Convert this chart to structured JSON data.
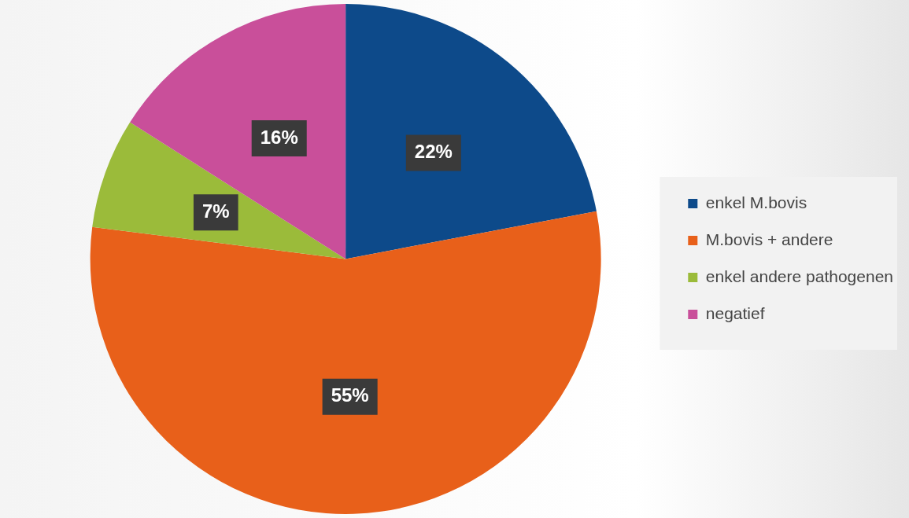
{
  "chart_data": {
    "type": "pie",
    "categories": [
      "enkel M.bovis",
      "M.bovis + andere",
      "enkel andere pathogenen",
      "negatief"
    ],
    "values": [
      22,
      55,
      7,
      16
    ],
    "colors": [
      "#0d4a8a",
      "#e8601a",
      "#9bbb3a",
      "#c94f9a"
    ],
    "value_labels": [
      "22%",
      "55%",
      "7%",
      "16%"
    ],
    "legend": "right"
  }
}
